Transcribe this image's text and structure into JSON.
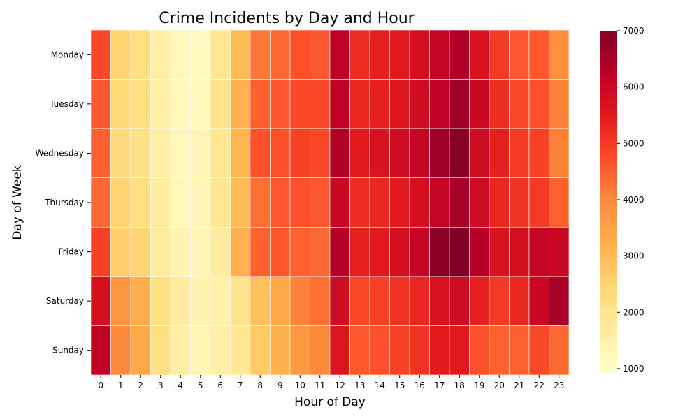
{
  "chart_data": {
    "type": "heatmap",
    "title": "Crime Incidents by Day and Hour",
    "xlabel": "Hour of Day",
    "ylabel": "Day of Week",
    "x_categories": [
      "0",
      "1",
      "2",
      "3",
      "4",
      "5",
      "6",
      "7",
      "8",
      "9",
      "10",
      "11",
      "12",
      "13",
      "14",
      "15",
      "16",
      "17",
      "18",
      "19",
      "20",
      "21",
      "22",
      "23"
    ],
    "y_categories": [
      "Monday",
      "Tuesday",
      "Wednesday",
      "Thursday",
      "Friday",
      "Saturday",
      "Sunday"
    ],
    "values": [
      [
        4800,
        2500,
        2200,
        1600,
        1200,
        1100,
        1900,
        3000,
        4200,
        4400,
        4700,
        4600,
        6200,
        5200,
        5400,
        5500,
        5800,
        6100,
        6400,
        5700,
        5000,
        4600,
        4600,
        3900
      ],
      [
        4600,
        2400,
        2200,
        1600,
        1200,
        1200,
        2000,
        3200,
        4500,
        4600,
        4800,
        4800,
        6200,
        5300,
        5400,
        5600,
        5900,
        6200,
        6600,
        6000,
        5200,
        4800,
        4700,
        4100
      ],
      [
        4500,
        2300,
        2100,
        1600,
        1200,
        1300,
        1900,
        3100,
        4700,
        4700,
        4900,
        4800,
        6400,
        5500,
        5700,
        5900,
        6100,
        6600,
        6900,
        5900,
        5400,
        5000,
        4900,
        4100
      ],
      [
        4400,
        2500,
        2200,
        1700,
        1200,
        1300,
        1900,
        3000,
        4300,
        4600,
        4700,
        4600,
        6000,
        5200,
        5300,
        5500,
        5800,
        6100,
        6500,
        5900,
        5300,
        5100,
        5000,
        4500
      ],
      [
        4900,
        2600,
        2500,
        1700,
        1400,
        1300,
        1700,
        3200,
        4500,
        4600,
        4500,
        4400,
        6300,
        5400,
        5500,
        5800,
        6100,
        6900,
        7000,
        6300,
        5700,
        5800,
        6100,
        6000
      ],
      [
        5800,
        3800,
        3300,
        2200,
        1700,
        1400,
        1500,
        2000,
        2900,
        3400,
        4100,
        4300,
        5900,
        4800,
        4900,
        5100,
        5300,
        5700,
        5900,
        5400,
        5000,
        5300,
        6000,
        6500
      ],
      [
        6200,
        4000,
        3400,
        2200,
        1600,
        1300,
        1600,
        1900,
        2700,
        3200,
        3700,
        4000,
        5600,
        4600,
        4700,
        4900,
        5100,
        5500,
        5500,
        4700,
        4500,
        4500,
        4800,
        4400
      ]
    ],
    "color_scale": {
      "min": 900,
      "max": 7000,
      "ticks": [
        1000,
        2000,
        3000,
        4000,
        5000,
        6000,
        7000
      ],
      "colormap": "YlOrRd",
      "stops": [
        "#ffffcc",
        "#ffeda0",
        "#fed976",
        "#feb24c",
        "#fd8d3c",
        "#fc4e2a",
        "#e31a1c",
        "#bd0026",
        "#800026"
      ]
    },
    "grid": false,
    "cell_border_color": "#ffffff"
  }
}
